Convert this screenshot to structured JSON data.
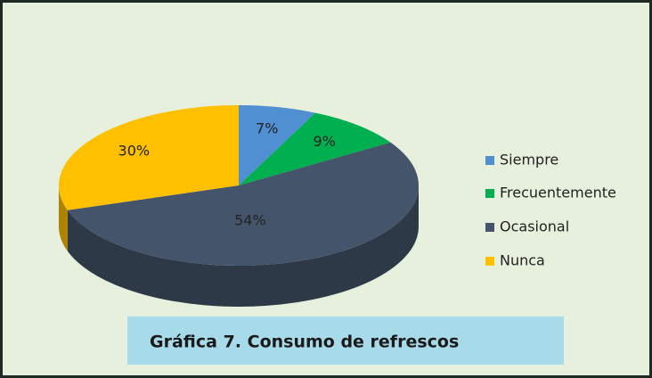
{
  "chart_data": {
    "type": "pie",
    "title": "Gráfica 7. Consumo de refrescos",
    "categories": [
      "Siempre",
      "Frecuentemente",
      "Ocasional",
      "Nunca"
    ],
    "values": [
      7,
      9,
      54,
      30
    ],
    "value_labels": [
      "7%",
      "9%",
      "54%",
      "30%"
    ],
    "colors": [
      "#4f8fd2",
      "#00b050",
      "#44546a",
      "#ffc000"
    ],
    "legend": "right"
  }
}
